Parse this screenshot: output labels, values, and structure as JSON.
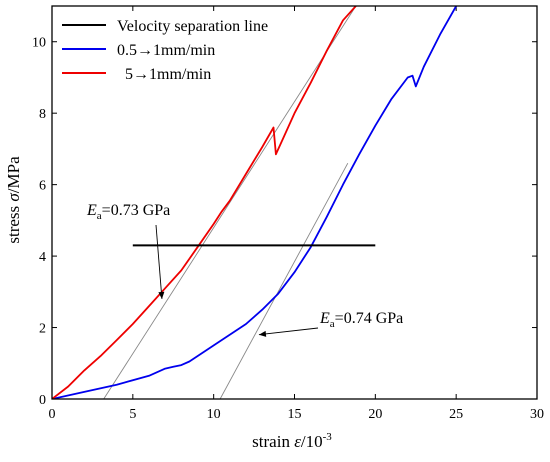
{
  "chart_data": {
    "type": "line",
    "xlabel": {
      "prefix": "strain ",
      "var": "ε",
      "unit": "/10",
      "exp": "-3"
    },
    "ylabel": {
      "prefix": "stress ",
      "var": "σ",
      "unit": "/MPa"
    },
    "xlim": [
      0,
      30
    ],
    "ylim": [
      0,
      11
    ],
    "xticks": [
      0,
      5,
      10,
      15,
      20,
      25,
      30
    ],
    "yticks": [
      0,
      2,
      4,
      6,
      8,
      10
    ],
    "legend_position": "top-left",
    "legend": [
      {
        "label": "Velocity separation line",
        "color": "#000000"
      },
      {
        "label": "0.5→1mm/min",
        "color": "#0000ee"
      },
      {
        "label": "  5→1mm/min",
        "color": "#ee0000"
      }
    ],
    "series": [
      {
        "name": "5→1mm/min",
        "color": "#ee0000",
        "x": [
          0,
          1,
          2,
          3,
          4,
          5,
          6,
          7,
          8,
          9,
          10,
          10.5,
          11,
          12,
          13,
          13.7,
          13.85,
          14.2,
          15,
          16,
          17,
          18,
          18.8
        ],
        "y": [
          0,
          0.35,
          0.8,
          1.2,
          1.65,
          2.1,
          2.6,
          3.1,
          3.6,
          4.25,
          4.9,
          5.25,
          5.55,
          6.3,
          7.05,
          7.6,
          6.85,
          7.2,
          8.0,
          8.85,
          9.75,
          10.6,
          11.0
        ]
      },
      {
        "name": "0.5→1mm/min",
        "color": "#0000ee",
        "x": [
          0,
          2,
          4,
          6,
          7,
          7.5,
          8,
          8.5,
          10,
          12,
          13,
          14,
          15,
          16,
          17,
          18,
          19,
          20,
          21,
          22,
          22.3,
          22.5,
          23,
          24,
          25
        ],
        "y": [
          0,
          0.2,
          0.4,
          0.65,
          0.85,
          0.9,
          0.95,
          1.05,
          1.5,
          2.1,
          2.5,
          2.95,
          3.55,
          4.25,
          5.1,
          6.0,
          6.85,
          7.65,
          8.4,
          9.0,
          9.05,
          8.75,
          9.3,
          10.2,
          11.0
        ]
      },
      {
        "name": "Velocity separation line",
        "color": "#000000",
        "x": [
          5,
          20
        ],
        "y": [
          4.3,
          4.3
        ]
      },
      {
        "name": "tangent-1",
        "color": "#888888",
        "x": [
          3.2,
          18.8
        ],
        "y": [
          0,
          11.0
        ]
      },
      {
        "name": "tangent-2",
        "color": "#888888",
        "x": [
          10.4,
          18.3
        ],
        "y": [
          0,
          6.6
        ]
      }
    ],
    "annotations": [
      {
        "sym": "E",
        "sub": "a",
        "text": "=0.73 GPa",
        "arrow_to": [
          6.8,
          2.8
        ]
      },
      {
        "sym": "E",
        "sub": "a",
        "text": "=0.74 GPa",
        "arrow_to": [
          12.8,
          1.8
        ]
      }
    ]
  }
}
